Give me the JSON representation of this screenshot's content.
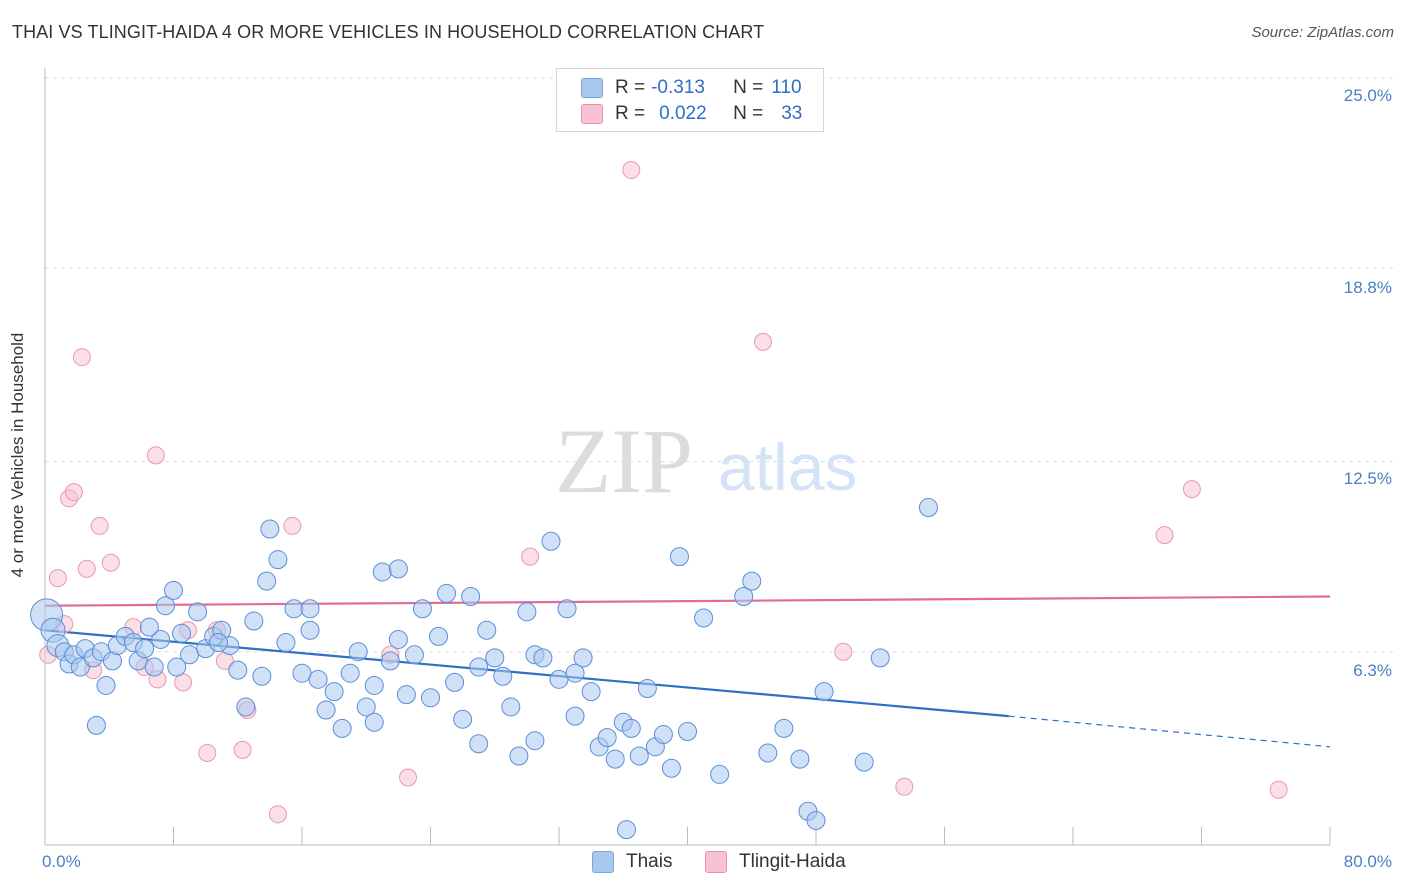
{
  "header": {
    "title": "THAI VS TLINGIT-HAIDA 4 OR MORE VEHICLES IN HOUSEHOLD CORRELATION CHART",
    "source": "Source: ZipAtlas.com"
  },
  "watermark": {
    "zip": "ZIP",
    "atlas": "atlas"
  },
  "legend": {
    "rows": [
      {
        "r_label": "R =",
        "r_value": "-0.313",
        "n_label": "N =",
        "n_value": "110",
        "color": "#a9c8f0",
        "border": "#7aa7e0"
      },
      {
        "r_label": "R =",
        "r_value": "0.022",
        "n_label": "N =",
        "n_value": "33",
        "color": "#f7c3d2",
        "border": "#e893ad"
      }
    ]
  },
  "bottom_legend": {
    "series1": "Thais",
    "series2": "Tlingit-Haida"
  },
  "colors": {
    "blue": "#a9c8f0",
    "blue_edge": "#5b8fd6",
    "blue_line": "#2f6fc5",
    "pink": "#f7c3d2",
    "pink_edge": "#e59ab2",
    "pink_line": "#e06d97",
    "tick_text": "#4a7fc1"
  },
  "chart_data": {
    "type": "scatter",
    "title": "THAI VS TLINGIT-HAIDA 4 OR MORE VEHICLES IN HOUSEHOLD CORRELATION CHART",
    "xlabel": "",
    "ylabel": "4 or more Vehicles in Household",
    "xlim": [
      0,
      80
    ],
    "ylim": [
      0,
      25
    ],
    "x_tick_labels": [
      "0.0%",
      "80.0%"
    ],
    "y_ticks": [
      6.3,
      12.5,
      18.8,
      25.0
    ],
    "y_tick_labels": [
      "6.3%",
      "12.5%",
      "18.8%",
      "25.0%"
    ],
    "grid": true,
    "legend_position": "top-center",
    "series": [
      {
        "name": "Thais",
        "r": -0.313,
        "n": 110,
        "trend": {
          "x": [
            0,
            60
          ],
          "y": [
            7.0,
            4.2
          ],
          "dashed_to": [
            80,
            3.2
          ]
        },
        "points": [
          [
            0.1,
            7.5
          ],
          [
            0.5,
            7.0
          ],
          [
            0.8,
            6.5
          ],
          [
            1.2,
            6.3
          ],
          [
            1.5,
            5.9
          ],
          [
            1.8,
            6.2
          ],
          [
            2.2,
            5.8
          ],
          [
            2.5,
            6.4
          ],
          [
            3.0,
            6.1
          ],
          [
            3.5,
            6.3
          ],
          [
            3.8,
            5.2
          ],
          [
            4.2,
            6.0
          ],
          [
            4.5,
            6.5
          ],
          [
            5.0,
            6.8
          ],
          [
            5.5,
            6.6
          ],
          [
            5.8,
            6.0
          ],
          [
            6.2,
            6.4
          ],
          [
            6.8,
            5.8
          ],
          [
            7.2,
            6.7
          ],
          [
            7.5,
            7.8
          ],
          [
            8.0,
            8.3
          ],
          [
            8.5,
            6.9
          ],
          [
            9.0,
            6.2
          ],
          [
            9.5,
            7.6
          ],
          [
            10.0,
            6.4
          ],
          [
            10.5,
            6.8
          ],
          [
            11.0,
            7.0
          ],
          [
            11.5,
            6.5
          ],
          [
            12.0,
            5.7
          ],
          [
            12.5,
            4.5
          ],
          [
            13.0,
            7.3
          ],
          [
            13.5,
            5.5
          ],
          [
            14.0,
            10.3
          ],
          [
            14.5,
            9.3
          ],
          [
            15.0,
            6.6
          ],
          [
            15.5,
            7.7
          ],
          [
            16.0,
            5.6
          ],
          [
            16.5,
            7.0
          ],
          [
            17.0,
            5.4
          ],
          [
            17.5,
            4.4
          ],
          [
            18.0,
            5.0
          ],
          [
            18.5,
            3.8
          ],
          [
            19.0,
            5.6
          ],
          [
            19.5,
            6.3
          ],
          [
            20.0,
            4.5
          ],
          [
            20.5,
            5.2
          ],
          [
            21.0,
            8.9
          ],
          [
            21.5,
            6.0
          ],
          [
            22.0,
            6.7
          ],
          [
            22.5,
            4.9
          ],
          [
            23.0,
            6.2
          ],
          [
            23.5,
            7.7
          ],
          [
            24.0,
            4.8
          ],
          [
            24.5,
            6.8
          ],
          [
            25.0,
            8.2
          ],
          [
            25.5,
            5.3
          ],
          [
            26.0,
            4.1
          ],
          [
            26.5,
            8.1
          ],
          [
            27.0,
            5.8
          ],
          [
            27.5,
            7.0
          ],
          [
            28.0,
            6.1
          ],
          [
            28.5,
            5.5
          ],
          [
            29.0,
            4.5
          ],
          [
            29.5,
            2.9
          ],
          [
            30.0,
            7.6
          ],
          [
            30.5,
            6.2
          ],
          [
            31.0,
            6.1
          ],
          [
            31.5,
            9.9
          ],
          [
            32.0,
            5.4
          ],
          [
            32.5,
            7.7
          ],
          [
            33.0,
            4.2
          ],
          [
            33.5,
            6.1
          ],
          [
            34.0,
            5.0
          ],
          [
            34.5,
            3.2
          ],
          [
            35.0,
            3.5
          ],
          [
            35.5,
            2.8
          ],
          [
            36.0,
            4.0
          ],
          [
            36.5,
            3.8
          ],
          [
            37.0,
            2.9
          ],
          [
            37.5,
            5.1
          ],
          [
            38.0,
            3.2
          ],
          [
            38.5,
            3.6
          ],
          [
            39.0,
            2.5
          ],
          [
            39.5,
            9.4
          ],
          [
            40.0,
            3.7
          ],
          [
            41.0,
            7.4
          ],
          [
            42.0,
            2.3
          ],
          [
            43.5,
            8.1
          ],
          [
            44.0,
            8.6
          ],
          [
            45.0,
            3.0
          ],
          [
            46.0,
            3.8
          ],
          [
            47.0,
            2.8
          ],
          [
            47.5,
            1.1
          ],
          [
            48.0,
            0.8
          ],
          [
            48.5,
            5.0
          ],
          [
            51.0,
            2.7
          ],
          [
            52.0,
            6.1
          ],
          [
            55.0,
            11.0
          ],
          [
            20.5,
            4.0
          ],
          [
            8.2,
            5.8
          ],
          [
            3.2,
            3.9
          ],
          [
            6.5,
            7.1
          ],
          [
            10.8,
            6.6
          ],
          [
            13.8,
            8.6
          ],
          [
            16.5,
            7.7
          ],
          [
            22.0,
            9.0
          ],
          [
            30.5,
            3.4
          ],
          [
            36.2,
            0.5
          ],
          [
            27.0,
            3.3
          ],
          [
            33.0,
            5.6
          ]
        ]
      },
      {
        "name": "Tlingit-Haida",
        "r": 0.022,
        "n": 33,
        "trend": {
          "x": [
            0,
            80
          ],
          "y": [
            7.8,
            8.1
          ]
        },
        "points": [
          [
            0.2,
            6.2
          ],
          [
            0.8,
            8.7
          ],
          [
            1.2,
            7.2
          ],
          [
            1.5,
            11.3
          ],
          [
            1.8,
            11.5
          ],
          [
            2.3,
            15.9
          ],
          [
            2.6,
            9.0
          ],
          [
            3.0,
            5.7
          ],
          [
            3.4,
            10.4
          ],
          [
            4.1,
            9.2
          ],
          [
            5.5,
            7.1
          ],
          [
            6.2,
            5.8
          ],
          [
            6.9,
            12.7
          ],
          [
            7.0,
            5.4
          ],
          [
            8.6,
            5.3
          ],
          [
            10.1,
            3.0
          ],
          [
            10.7,
            7.0
          ],
          [
            11.2,
            6.0
          ],
          [
            12.3,
            3.1
          ],
          [
            12.6,
            4.4
          ],
          [
            14.5,
            1.0
          ],
          [
            15.4,
            10.4
          ],
          [
            21.5,
            6.2
          ],
          [
            22.6,
            2.2
          ],
          [
            30.2,
            9.4
          ],
          [
            36.5,
            22.0
          ],
          [
            44.7,
            16.4
          ],
          [
            49.7,
            6.3
          ],
          [
            53.5,
            1.9
          ],
          [
            69.7,
            10.1
          ],
          [
            71.4,
            11.6
          ],
          [
            76.8,
            1.8
          ],
          [
            8.9,
            7.0
          ]
        ]
      }
    ]
  }
}
